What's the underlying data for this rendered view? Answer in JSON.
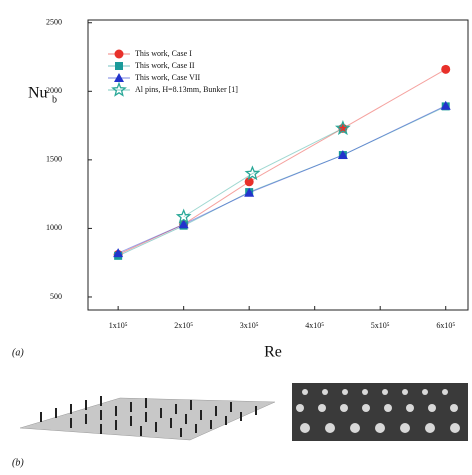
{
  "chart_data": {
    "type": "line",
    "x_label": "Re",
    "y_label": {
      "main": "Nu",
      "sub": "b"
    },
    "xlim": [
      54000,
      634000
    ],
    "ylim": [
      405,
      2520
    ],
    "xticks": [
      {
        "value": 100000,
        "label": "1x10⁵"
      },
      {
        "value": 200000,
        "label": "2x10⁵"
      },
      {
        "value": 300000,
        "label": "3x10⁵"
      },
      {
        "value": 400000,
        "label": "4x10⁵"
      },
      {
        "value": 500000,
        "label": "5x10⁵"
      },
      {
        "value": 600000,
        "label": "6x10⁵"
      }
    ],
    "yticks": [
      500,
      1000,
      1500,
      2000,
      2500
    ],
    "legend": "upper left",
    "series": [
      {
        "name": "This work, Case I",
        "color": "#e8302a",
        "marker": "circle",
        "x": [
          100000,
          200000,
          300000,
          443000,
          600000
        ],
        "values": [
          810,
          1030,
          1340,
          1730,
          2160
        ]
      },
      {
        "name": "This work, Case II",
        "color": "#1a9a9a",
        "marker": "square",
        "x": [
          100000,
          200000,
          300000,
          443000,
          600000
        ],
        "values": [
          800,
          1020,
          1265,
          1535,
          1890
        ]
      },
      {
        "name": "This work, Case VII",
        "color": "#2233cc",
        "marker": "triangle",
        "x": [
          100000,
          200000,
          300000,
          443000,
          600000
        ],
        "values": [
          820,
          1030,
          1260,
          1535,
          1895
        ]
      },
      {
        "name": "Al pins, H=8.13mm, Bunker [1]",
        "color": "#2aa898",
        "marker": "star",
        "x": [
          200000,
          305000,
          443000
        ],
        "values": [
          1085,
          1400,
          1730
        ]
      }
    ]
  },
  "panel_labels": [
    "(a)",
    "(b)"
  ]
}
